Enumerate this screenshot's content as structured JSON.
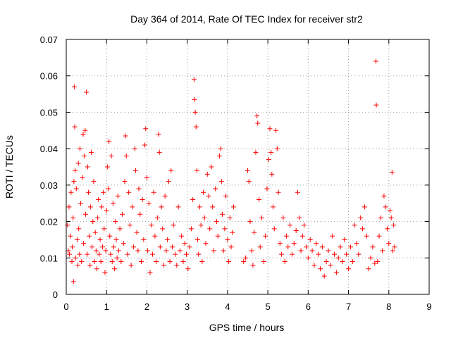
{
  "chart_data": {
    "type": "scatter",
    "title": "Day 364 of 2014, Rate Of TEC Index for receiver str2",
    "xlabel": "GPS time / hours",
    "ylabel": "ROTI / TECUs",
    "xlim": [
      0,
      9
    ],
    "ylim": [
      0,
      0.07
    ],
    "xticks": [
      0,
      1,
      2,
      3,
      4,
      5,
      6,
      7,
      8,
      9
    ],
    "xtick_labels": [
      "0",
      "1",
      "2",
      "3",
      "4",
      "5",
      "6",
      "7",
      "8",
      "9"
    ],
    "yticks": [
      0,
      0.01,
      0.02,
      0.03,
      0.04,
      0.05,
      0.06,
      0.07
    ],
    "ytick_labels": [
      "0",
      "0.01",
      "0.02",
      "0.03",
      "0.04",
      "0.05",
      "0.06",
      "0.07"
    ],
    "grid": true,
    "marker": "+",
    "color": "#ff0000",
    "series": [
      {
        "name": "ROTI",
        "points": [
          [
            0.03,
            0.019
          ],
          [
            0.05,
            0.012
          ],
          [
            0.07,
            0.024
          ],
          [
            0.08,
            0.011
          ],
          [
            0.1,
            0.016
          ],
          [
            0.12,
            0.028
          ],
          [
            0.14,
            0.009
          ],
          [
            0.15,
            0.013
          ],
          [
            0.17,
            0.021
          ],
          [
            0.18,
            0.0035
          ],
          [
            0.19,
            0.031
          ],
          [
            0.2,
            0.057
          ],
          [
            0.21,
            0.046
          ],
          [
            0.22,
            0.034
          ],
          [
            0.23,
            0.01
          ],
          [
            0.25,
            0.029
          ],
          [
            0.27,
            0.015
          ],
          [
            0.29,
            0.008
          ],
          [
            0.3,
            0.036
          ],
          [
            0.31,
            0.018
          ],
          [
            0.33,
            0.011
          ],
          [
            0.34,
            0.04
          ],
          [
            0.36,
            0.025
          ],
          [
            0.38,
            0.009
          ],
          [
            0.4,
            0.032
          ],
          [
            0.42,
            0.044
          ],
          [
            0.43,
            0.014
          ],
          [
            0.45,
            0.038
          ],
          [
            0.47,
            0.045
          ],
          [
            0.48,
            0.022
          ],
          [
            0.5,
            0.0555
          ],
          [
            0.52,
            0.011
          ],
          [
            0.53,
            0.035
          ],
          [
            0.55,
            0.028
          ],
          [
            0.57,
            0.016
          ],
          [
            0.59,
            0.008
          ],
          [
            0.6,
            0.024
          ],
          [
            0.62,
            0.039
          ],
          [
            0.64,
            0.013
          ],
          [
            0.66,
            0.02
          ],
          [
            0.68,
            0.031
          ],
          [
            0.7,
            0.009
          ],
          [
            0.72,
            0.017
          ],
          [
            0.74,
            0.012
          ],
          [
            0.76,
            0.007
          ],
          [
            0.78,
            0.021
          ],
          [
            0.8,
            0.026
          ],
          [
            0.82,
            0.011
          ],
          [
            0.84,
            0.015
          ],
          [
            0.86,
            0.009
          ],
          [
            0.88,
            0.024
          ],
          [
            0.9,
            0.013
          ],
          [
            0.92,
            0.028
          ],
          [
            0.94,
            0.018
          ],
          [
            0.96,
            0.006
          ],
          [
            0.98,
            0.012
          ],
          [
            1.0,
            0.023
          ],
          [
            1.02,
            0.035
          ],
          [
            1.04,
            0.029
          ],
          [
            1.06,
            0.042
          ],
          [
            1.08,
            0.016
          ],
          [
            1.1,
            0.011
          ],
          [
            1.12,
            0.038
          ],
          [
            1.14,
            0.009
          ],
          [
            1.16,
            0.025
          ],
          [
            1.18,
            0.013
          ],
          [
            1.2,
            0.007
          ],
          [
            1.22,
            0.02
          ],
          [
            1.24,
            0.015
          ],
          [
            1.26,
            0.01
          ],
          [
            1.28,
            0.027
          ],
          [
            1.3,
            0.012
          ],
          [
            1.33,
            0.018
          ],
          [
            1.36,
            0.009
          ],
          [
            1.39,
            0.022
          ],
          [
            1.42,
            0.014
          ],
          [
            1.45,
            0.031
          ],
          [
            1.47,
            0.0435
          ],
          [
            1.49,
            0.038
          ],
          [
            1.52,
            0.011
          ],
          [
            1.55,
            0.028
          ],
          [
            1.58,
            0.019
          ],
          [
            1.61,
            0.008
          ],
          [
            1.64,
            0.024
          ],
          [
            1.67,
            0.013
          ],
          [
            1.7,
            0.04
          ],
          [
            1.72,
            0.034
          ],
          [
            1.75,
            0.017
          ],
          [
            1.78,
            0.012
          ],
          [
            1.8,
            0.029
          ],
          [
            1.83,
            0.022
          ],
          [
            1.86,
            0.009
          ],
          [
            1.89,
            0.026
          ],
          [
            1.92,
            0.015
          ],
          [
            1.95,
            0.041
          ],
          [
            1.97,
            0.0455
          ],
          [
            2.0,
            0.032
          ],
          [
            2.02,
            0.012
          ],
          [
            2.05,
            0.025
          ],
          [
            2.08,
            0.006
          ],
          [
            2.11,
            0.019
          ],
          [
            2.14,
            0.011
          ],
          [
            2.17,
            0.028
          ],
          [
            2.2,
            0.016
          ],
          [
            2.23,
            0.009
          ],
          [
            2.26,
            0.021
          ],
          [
            2.29,
            0.044
          ],
          [
            2.31,
            0.039
          ],
          [
            2.33,
            0.013
          ],
          [
            2.36,
            0.024
          ],
          [
            2.39,
            0.018
          ],
          [
            2.42,
            0.008
          ],
          [
            2.45,
            0.027
          ],
          [
            2.48,
            0.012
          ],
          [
            2.51,
            0.015
          ],
          [
            2.54,
            0.031
          ],
          [
            2.57,
            0.009
          ],
          [
            2.6,
            0.034
          ],
          [
            2.63,
            0.013
          ],
          [
            2.66,
            0.019
          ],
          [
            2.7,
            0.011
          ],
          [
            2.74,
            0.008
          ],
          [
            2.78,
            0.024
          ],
          [
            2.82,
            0.012
          ],
          [
            2.86,
            0.016
          ],
          [
            2.9,
            0.009
          ],
          [
            2.94,
            0.014
          ],
          [
            2.98,
            0.011
          ],
          [
            3.02,
            0.007
          ],
          [
            3.06,
            0.013
          ],
          [
            3.1,
            0.018
          ],
          [
            3.14,
            0.026
          ],
          [
            3.17,
            0.059
          ],
          [
            3.18,
            0.0535
          ],
          [
            3.2,
            0.05
          ],
          [
            3.22,
            0.046
          ],
          [
            3.24,
            0.034
          ],
          [
            3.26,
            0.015
          ],
          [
            3.28,
            0.011
          ],
          [
            3.31,
            0.024
          ],
          [
            3.34,
            0.019
          ],
          [
            3.37,
            0.009
          ],
          [
            3.4,
            0.028
          ],
          [
            3.43,
            0.021
          ],
          [
            3.46,
            0.014
          ],
          [
            3.5,
            0.033
          ],
          [
            3.53,
            0.027
          ],
          [
            3.56,
            0.018
          ],
          [
            3.6,
            0.035
          ],
          [
            3.63,
            0.024
          ],
          [
            3.66,
            0.012
          ],
          [
            3.7,
            0.029
          ],
          [
            3.73,
            0.02
          ],
          [
            3.76,
            0.016
          ],
          [
            3.8,
            0.038
          ],
          [
            3.83,
            0.04
          ],
          [
            3.85,
            0.031
          ],
          [
            3.87,
            0.022
          ],
          [
            3.9,
            0.012
          ],
          [
            3.93,
            0.018
          ],
          [
            3.96,
            0.027
          ],
          [
            4.0,
            0.015
          ],
          [
            4.03,
            0.009
          ],
          [
            4.06,
            0.021
          ],
          [
            4.09,
            0.013
          ],
          [
            4.12,
            0.017
          ],
          [
            4.15,
            0.024
          ],
          [
            4.4,
            0.009
          ],
          [
            4.45,
            0.01
          ],
          [
            4.5,
            0.034
          ],
          [
            4.53,
            0.031
          ],
          [
            4.56,
            0.02
          ],
          [
            4.6,
            0.012
          ],
          [
            4.63,
            0.008
          ],
          [
            4.66,
            0.017
          ],
          [
            4.7,
            0.039
          ],
          [
            4.73,
            0.049
          ],
          [
            4.75,
            0.047
          ],
          [
            4.78,
            0.026
          ],
          [
            4.81,
            0.013
          ],
          [
            4.85,
            0.021
          ],
          [
            4.9,
            0.009
          ],
          [
            4.94,
            0.016
          ],
          [
            4.98,
            0.029
          ],
          [
            5.02,
            0.037
          ],
          [
            5.05,
            0.0455
          ],
          [
            5.08,
            0.039
          ],
          [
            5.1,
            0.033
          ],
          [
            5.13,
            0.024
          ],
          [
            5.16,
            0.018
          ],
          [
            5.2,
            0.045
          ],
          [
            5.23,
            0.04
          ],
          [
            5.26,
            0.028
          ],
          [
            5.3,
            0.014
          ],
          [
            5.34,
            0.011
          ],
          [
            5.38,
            0.021
          ],
          [
            5.42,
            0.009
          ],
          [
            5.46,
            0.016
          ],
          [
            5.5,
            0.013
          ],
          [
            5.55,
            0.019
          ],
          [
            5.6,
            0.011
          ],
          [
            5.65,
            0.014
          ],
          [
            5.7,
            0.0175
          ],
          [
            5.74,
            0.028
          ],
          [
            5.78,
            0.021
          ],
          [
            5.82,
            0.012
          ],
          [
            5.86,
            0.016
          ],
          [
            5.9,
            0.019
          ],
          [
            5.95,
            0.013
          ],
          [
            6.0,
            0.01
          ],
          [
            6.05,
            0.015
          ],
          [
            6.1,
            0.012
          ],
          [
            6.15,
            0.008
          ],
          [
            6.2,
            0.014
          ],
          [
            6.25,
            0.011
          ],
          [
            6.3,
            0.007
          ],
          [
            6.35,
            0.013
          ],
          [
            6.4,
            0.005
          ],
          [
            6.45,
            0.009
          ],
          [
            6.5,
            0.012
          ],
          [
            6.55,
            0.008
          ],
          [
            6.6,
            0.016
          ],
          [
            6.65,
            0.011
          ],
          [
            6.7,
            0.006
          ],
          [
            6.75,
            0.01
          ],
          [
            6.8,
            0.013
          ],
          [
            6.85,
            0.009
          ],
          [
            6.9,
            0.015
          ],
          [
            6.95,
            0.011
          ],
          [
            7.0,
            0.007
          ],
          [
            7.05,
            0.013
          ],
          [
            7.1,
            0.009
          ],
          [
            7.15,
            0.019
          ],
          [
            7.2,
            0.014
          ],
          [
            7.25,
            0.011
          ],
          [
            7.3,
            0.021
          ],
          [
            7.35,
            0.018
          ],
          [
            7.4,
            0.024
          ],
          [
            7.45,
            0.016
          ],
          [
            7.5,
            0.007
          ],
          [
            7.55,
            0.01
          ],
          [
            7.6,
            0.013
          ],
          [
            7.65,
            0.0085
          ],
          [
            7.68,
            0.064
          ],
          [
            7.69,
            0.052
          ],
          [
            7.72,
            0.009
          ],
          [
            7.76,
            0.016
          ],
          [
            7.8,
            0.021
          ],
          [
            7.84,
            0.012
          ],
          [
            7.88,
            0.027
          ],
          [
            7.92,
            0.024
          ],
          [
            7.96,
            0.018
          ],
          [
            8.0,
            0.014
          ],
          [
            8.03,
            0.023
          ],
          [
            8.06,
            0.021
          ],
          [
            8.08,
            0.0335
          ],
          [
            8.1,
            0.012
          ],
          [
            8.12,
            0.019
          ],
          [
            8.14,
            0.013
          ]
        ]
      }
    ]
  }
}
